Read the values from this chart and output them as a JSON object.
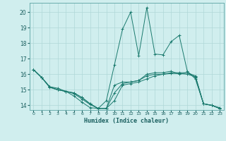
{
  "title": "",
  "xlabel": "Humidex (Indice chaleur)",
  "background_color": "#d0eeee",
  "line_color": "#1a7a6e",
  "grid_color": "#b0d8d8",
  "xlim": [
    -0.5,
    23.5
  ],
  "ylim": [
    13.7,
    20.6
  ],
  "yticks": [
    14,
    15,
    16,
    17,
    18,
    19,
    20
  ],
  "xticks": [
    0,
    1,
    2,
    3,
    4,
    5,
    6,
    7,
    8,
    9,
    10,
    11,
    12,
    13,
    14,
    15,
    16,
    17,
    18,
    19,
    20,
    21,
    22,
    23
  ],
  "series": [
    [
      0,
      16.3,
      1,
      15.8,
      2,
      15.2,
      3,
      15.0,
      4,
      14.9,
      5,
      14.8,
      6,
      14.5,
      7,
      14.1,
      8,
      13.8,
      9,
      13.8,
      10,
      14.3,
      11,
      15.3,
      12,
      15.4,
      13,
      15.5,
      14,
      15.7,
      15,
      15.9,
      16,
      16.0,
      17,
      16.1,
      18,
      16.1,
      19,
      16.1,
      20,
      15.9,
      21,
      14.1,
      22,
      14.0,
      23,
      13.8
    ],
    [
      0,
      16.3,
      1,
      15.8,
      2,
      15.2,
      3,
      15.1,
      4,
      14.9,
      5,
      14.6,
      6,
      14.2,
      7,
      13.85,
      8,
      13.8,
      9,
      14.3,
      10,
      16.6,
      11,
      18.9,
      12,
      20.0,
      13,
      17.2,
      14,
      20.3,
      15,
      17.3,
      16,
      17.25,
      17,
      18.1,
      18,
      18.5,
      19,
      16.2,
      20,
      15.7,
      21,
      14.1,
      22,
      14.0,
      23,
      13.85
    ],
    [
      0,
      16.3,
      1,
      15.8,
      2,
      15.2,
      3,
      15.0,
      4,
      14.9,
      5,
      14.8,
      6,
      14.5,
      7,
      14.1,
      8,
      13.8,
      9,
      13.8,
      10,
      15.3,
      11,
      15.5,
      12,
      15.5,
      13,
      15.6,
      14,
      16.0,
      15,
      16.1,
      16,
      16.1,
      17,
      16.2,
      18,
      16.0,
      19,
      16.1,
      20,
      15.8,
      21,
      14.1,
      22,
      14.0,
      23,
      13.8
    ],
    [
      0,
      16.3,
      1,
      15.8,
      2,
      15.15,
      3,
      15.0,
      4,
      14.9,
      5,
      14.75,
      6,
      14.4,
      7,
      14.05,
      8,
      13.8,
      9,
      13.8,
      10,
      14.8,
      11,
      15.4,
      12,
      15.5,
      13,
      15.6,
      14,
      15.9,
      15,
      16.0,
      16,
      16.0,
      17,
      16.05,
      18,
      16.05,
      19,
      16.0,
      20,
      15.85,
      21,
      14.1,
      22,
      14.0,
      23,
      13.8
    ]
  ]
}
